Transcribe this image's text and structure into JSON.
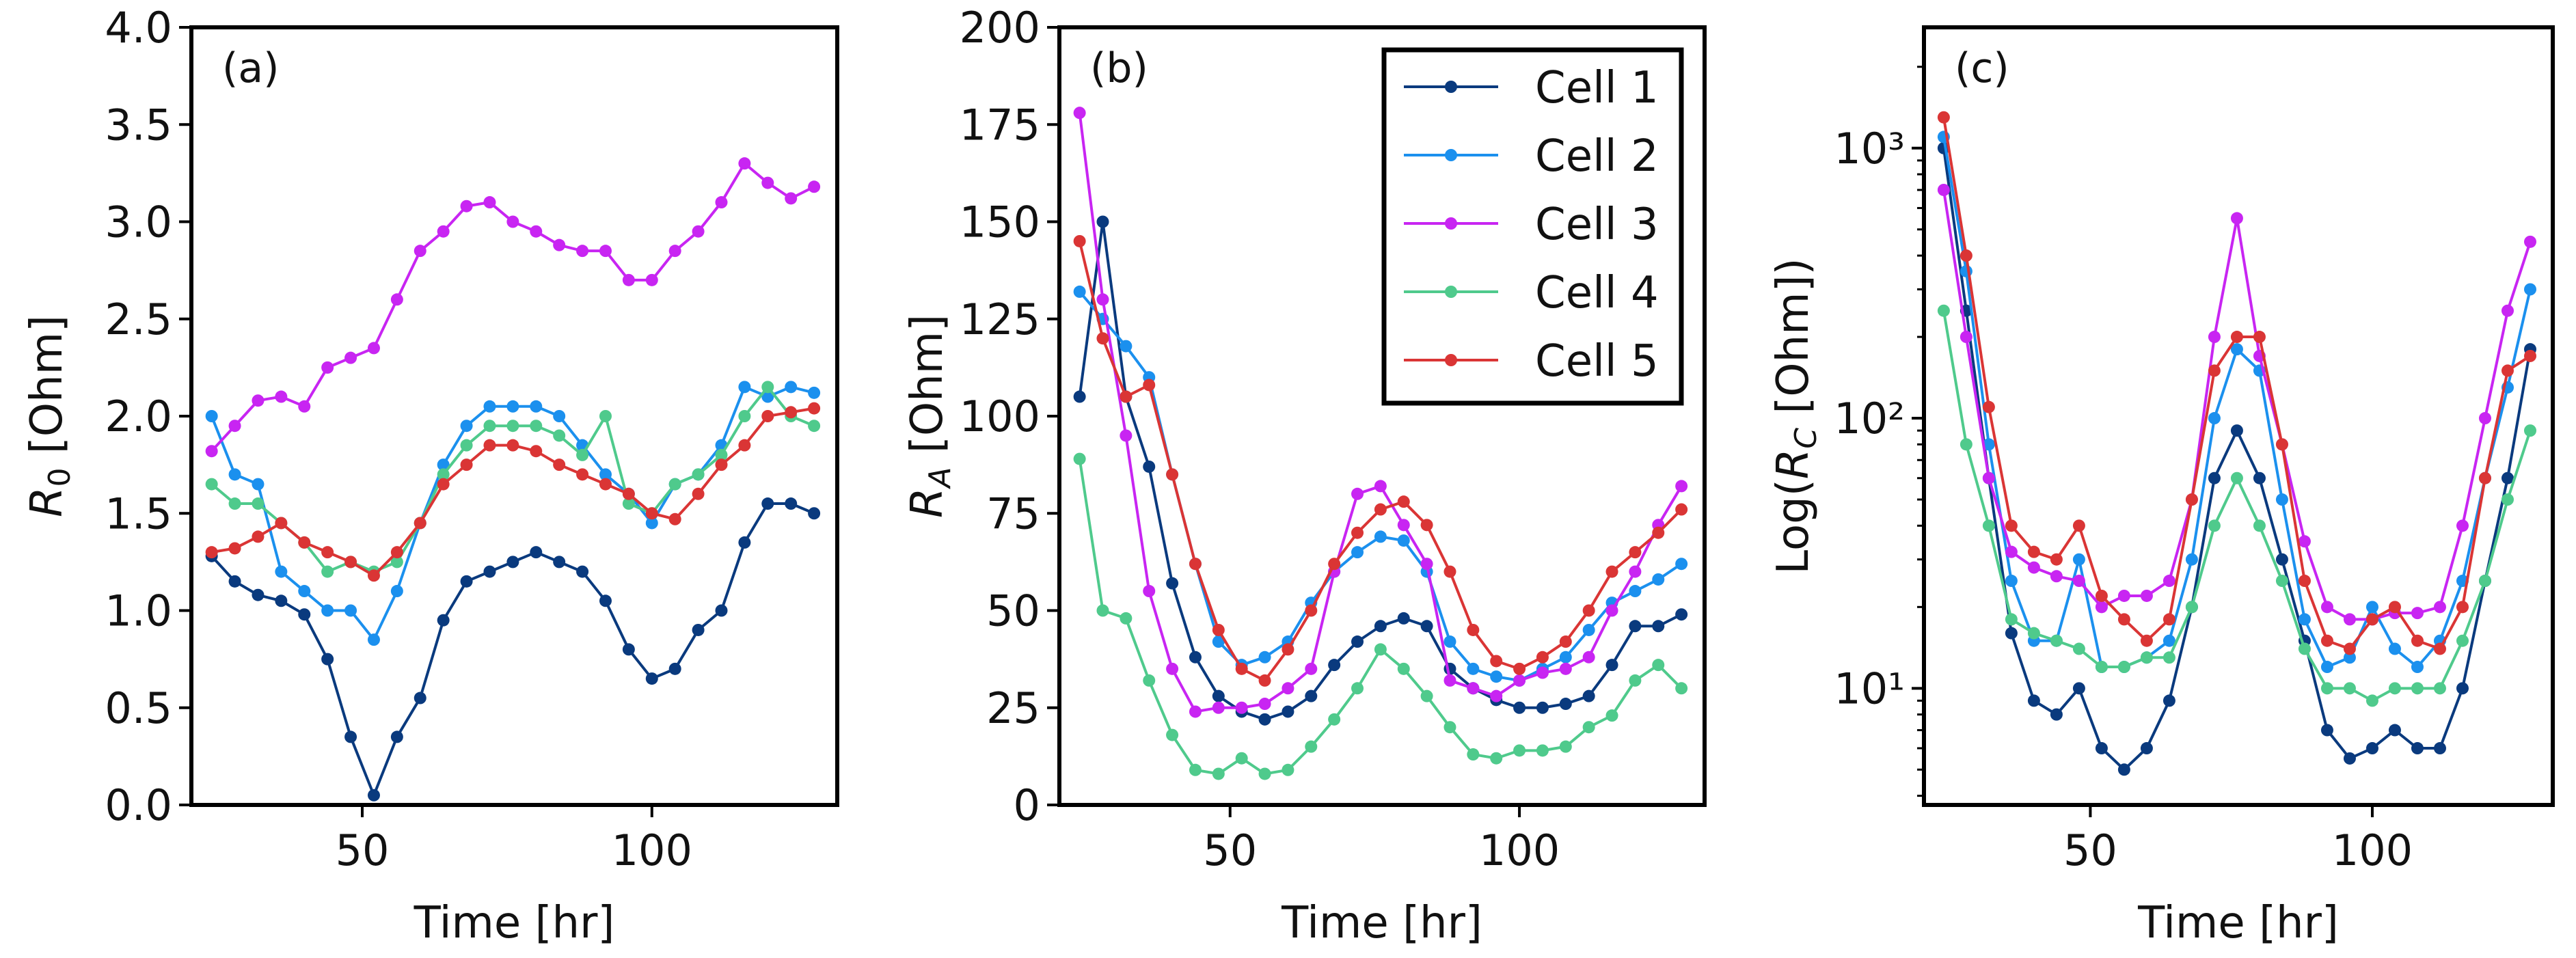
{
  "chart_data": [
    {
      "type": "line",
      "panel_label": "(a)",
      "xlabel": "Time [hr]",
      "ylabel": {
        "prefix": "",
        "var": "R",
        "sub": "0",
        "suffix": " [Ohm]"
      },
      "xlim": [
        20.5,
        132
      ],
      "ylim": [
        0,
        4.0
      ],
      "yscale": "linear",
      "xticks": [
        50,
        100
      ],
      "xtick_labels": [
        "50",
        "100"
      ],
      "yticks": [
        0,
        0.5,
        1.0,
        1.5,
        2.0,
        2.5,
        3.0,
        3.5,
        4.0
      ],
      "ytick_labels": [
        "0.0",
        "0.5",
        "1.0",
        "1.5",
        "2.0",
        "2.5",
        "3.0",
        "3.5",
        "4.0"
      ],
      "x": [
        24,
        28,
        32,
        36,
        40,
        44,
        48,
        52,
        56,
        60,
        64,
        68,
        72,
        76,
        80,
        84,
        88,
        92,
        96,
        100,
        104,
        108,
        112,
        116,
        120,
        124,
        128
      ],
      "series": [
        {
          "name": "Cell 1",
          "values": [
            1.28,
            1.15,
            1.08,
            1.05,
            0.98,
            0.75,
            0.35,
            0.05,
            0.35,
            0.55,
            0.95,
            1.15,
            1.2,
            1.25,
            1.3,
            1.25,
            1.2,
            1.05,
            0.8,
            0.65,
            0.7,
            0.9,
            1.0,
            1.35,
            1.55,
            1.55,
            1.5
          ]
        },
        {
          "name": "Cell 2",
          "values": [
            2.0,
            1.7,
            1.65,
            1.2,
            1.1,
            1.0,
            1.0,
            0.85,
            1.1,
            1.45,
            1.75,
            1.95,
            2.05,
            2.05,
            2.05,
            2.0,
            1.85,
            1.7,
            1.6,
            1.45,
            1.65,
            1.7,
            1.85,
            2.15,
            2.1,
            2.15,
            2.12
          ]
        },
        {
          "name": "Cell 3",
          "values": [
            1.82,
            1.95,
            2.08,
            2.1,
            2.05,
            2.25,
            2.3,
            2.35,
            2.6,
            2.85,
            2.95,
            3.08,
            3.1,
            3.0,
            2.95,
            2.88,
            2.85,
            2.85,
            2.7,
            2.7,
            2.85,
            2.95,
            3.1,
            3.3,
            3.2,
            3.12,
            3.18
          ]
        },
        {
          "name": "Cell 4",
          "values": [
            1.65,
            1.55,
            1.55,
            1.45,
            1.35,
            1.2,
            1.25,
            1.2,
            1.25,
            1.45,
            1.7,
            1.85,
            1.95,
            1.95,
            1.95,
            1.9,
            1.8,
            2.0,
            1.55,
            1.5,
            1.65,
            1.7,
            1.8,
            2.0,
            2.15,
            2.0,
            1.95
          ]
        },
        {
          "name": "Cell 5",
          "values": [
            1.3,
            1.32,
            1.38,
            1.45,
            1.35,
            1.3,
            1.25,
            1.18,
            1.3,
            1.45,
            1.65,
            1.75,
            1.85,
            1.85,
            1.82,
            1.75,
            1.7,
            1.65,
            1.6,
            1.5,
            1.47,
            1.6,
            1.75,
            1.85,
            2.0,
            2.02,
            2.04
          ]
        }
      ]
    },
    {
      "type": "line",
      "panel_label": "(b)",
      "xlabel": "Time [hr]",
      "ylabel": {
        "prefix": "",
        "var": "R",
        "sub": "A",
        "suffix": " [Ohm]"
      },
      "xlim": [
        20.5,
        132
      ],
      "ylim": [
        0,
        200
      ],
      "yscale": "linear",
      "xticks": [
        50,
        100
      ],
      "xtick_labels": [
        "50",
        "100"
      ],
      "yticks": [
        0,
        25,
        50,
        75,
        100,
        125,
        150,
        175,
        200
      ],
      "ytick_labels": [
        "0",
        "25",
        "50",
        "75",
        "100",
        "125",
        "150",
        "175",
        "200"
      ],
      "legend": {
        "position": "top-right",
        "entries": [
          "Cell 1",
          "Cell 2",
          "Cell 3",
          "Cell 4",
          "Cell 5"
        ]
      },
      "x": [
        24,
        28,
        32,
        36,
        40,
        44,
        48,
        52,
        56,
        60,
        64,
        68,
        72,
        76,
        80,
        84,
        88,
        92,
        96,
        100,
        104,
        108,
        112,
        116,
        120,
        124,
        128
      ],
      "series": [
        {
          "name": "Cell 1",
          "values": [
            105,
            150,
            105,
            87,
            57,
            38,
            28,
            24,
            22,
            24,
            28,
            36,
            42,
            46,
            48,
            46,
            35,
            30,
            27,
            25,
            25,
            26,
            28,
            36,
            46,
            46,
            49
          ]
        },
        {
          "name": "Cell 2",
          "values": [
            132,
            125,
            118,
            110,
            85,
            62,
            42,
            36,
            38,
            42,
            52,
            60,
            65,
            69,
            68,
            60,
            42,
            35,
            33,
            32,
            35,
            38,
            45,
            52,
            55,
            58,
            62
          ]
        },
        {
          "name": "Cell 3",
          "values": [
            178,
            130,
            95,
            55,
            35,
            24,
            25,
            25,
            26,
            30,
            35,
            60,
            80,
            82,
            72,
            62,
            32,
            30,
            28,
            32,
            34,
            35,
            38,
            50,
            60,
            72,
            82
          ]
        },
        {
          "name": "Cell 4",
          "values": [
            89,
            50,
            48,
            32,
            18,
            9,
            8,
            12,
            8,
            9,
            15,
            22,
            30,
            40,
            35,
            28,
            20,
            13,
            12,
            14,
            14,
            15,
            20,
            23,
            32,
            36,
            30
          ]
        },
        {
          "name": "Cell 5",
          "values": [
            145,
            120,
            105,
            108,
            85,
            62,
            45,
            35,
            32,
            40,
            50,
            62,
            70,
            76,
            78,
            72,
            60,
            45,
            37,
            35,
            38,
            42,
            50,
            60,
            65,
            70,
            76
          ]
        }
      ]
    },
    {
      "type": "line",
      "panel_label": "(c)",
      "xlabel": "Time [hr]",
      "ylabel": {
        "prefix": "Log(",
        "var": "R",
        "sub": "C",
        "suffix": " [Ohm])"
      },
      "xlim": [
        20.5,
        132
      ],
      "ylim": [
        3.7,
        2800
      ],
      "yscale": "log",
      "xticks": [
        50,
        100
      ],
      "xtick_labels": [
        "50",
        "100"
      ],
      "yticks": [
        10,
        100,
        1000
      ],
      "ytick_labels": [
        "10¹",
        "10²",
        "10³"
      ],
      "x": [
        24,
        28,
        32,
        36,
        40,
        44,
        48,
        52,
        56,
        60,
        64,
        68,
        72,
        76,
        80,
        84,
        88,
        92,
        96,
        100,
        104,
        108,
        112,
        116,
        120,
        124,
        128
      ],
      "series": [
        {
          "name": "Cell 1",
          "values": [
            1000,
            250,
            60,
            16,
            9,
            8,
            10,
            6,
            5,
            6,
            9,
            20,
            60,
            90,
            60,
            30,
            15,
            7,
            5.5,
            6,
            7,
            6,
            6,
            10,
            25,
            60,
            180
          ]
        },
        {
          "name": "Cell 2",
          "values": [
            1100,
            350,
            80,
            25,
            15,
            15,
            30,
            12,
            12,
            13,
            15,
            30,
            100,
            180,
            150,
            50,
            18,
            12,
            13,
            20,
            14,
            12,
            15,
            25,
            60,
            130,
            300
          ]
        },
        {
          "name": "Cell 3",
          "values": [
            700,
            200,
            60,
            32,
            28,
            26,
            25,
            20,
            22,
            22,
            25,
            50,
            200,
            550,
            170,
            80,
            35,
            20,
            18,
            18,
            19,
            19,
            20,
            40,
            100,
            250,
            450
          ]
        },
        {
          "name": "Cell 4",
          "values": [
            250,
            80,
            40,
            18,
            16,
            15,
            14,
            12,
            12,
            13,
            13,
            20,
            40,
            60,
            40,
            25,
            14,
            10,
            10,
            9,
            10,
            10,
            10,
            15,
            25,
            50,
            90
          ]
        },
        {
          "name": "Cell 5",
          "values": [
            1300,
            400,
            110,
            40,
            32,
            30,
            40,
            22,
            18,
            15,
            18,
            50,
            150,
            200,
            200,
            80,
            25,
            15,
            14,
            18,
            20,
            15,
            14,
            20,
            60,
            150,
            170
          ]
        }
      ]
    }
  ],
  "colors": {
    "Cell 1": "#0a3a7e",
    "Cell 2": "#1b90ee",
    "Cell 3": "#c825f2",
    "Cell 4": "#4fca8c",
    "Cell 5": "#da3535"
  }
}
